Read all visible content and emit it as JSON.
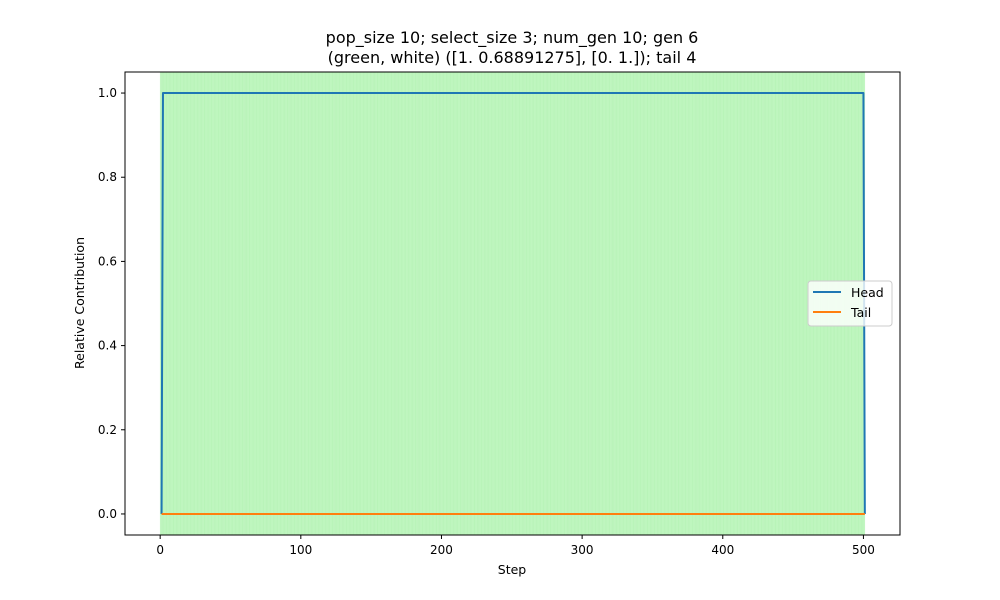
{
  "chart_data": {
    "type": "line",
    "title_line1": "pop_size 10; select_size 3; num_gen 10; gen 6",
    "title_line2": "(green, white) ([1.         0.68891275], [0. 1.]); tail 4",
    "xlabel": "Step",
    "ylabel": "Relative Contribution",
    "xlim": [
      -25,
      526
    ],
    "ylim": [
      -0.05,
      1.05
    ],
    "x_ticks": [
      0,
      100,
      200,
      300,
      400,
      500
    ],
    "y_ticks": [
      0.0,
      0.2,
      0.4,
      0.6,
      0.8,
      1.0
    ],
    "x_tick_labels": [
      "0",
      "100",
      "200",
      "300",
      "400",
      "500"
    ],
    "y_tick_labels": [
      "0.0",
      "0.2",
      "0.4",
      "0.6",
      "0.8",
      "1.0"
    ],
    "shaded_span": [
      0,
      501
    ],
    "shade_color": "#b8f4b8",
    "shade_line_color": "#c9f7c9",
    "legend_position": "center-right",
    "grid": false,
    "series": [
      {
        "name": "Head",
        "color": "#1f77b4",
        "x": [
          1,
          2,
          500,
          501
        ],
        "y": [
          0,
          1,
          1,
          0
        ]
      },
      {
        "name": "Tail",
        "color": "#ff7f0e",
        "x": [
          1,
          501
        ],
        "y": [
          0,
          0
        ]
      }
    ]
  }
}
